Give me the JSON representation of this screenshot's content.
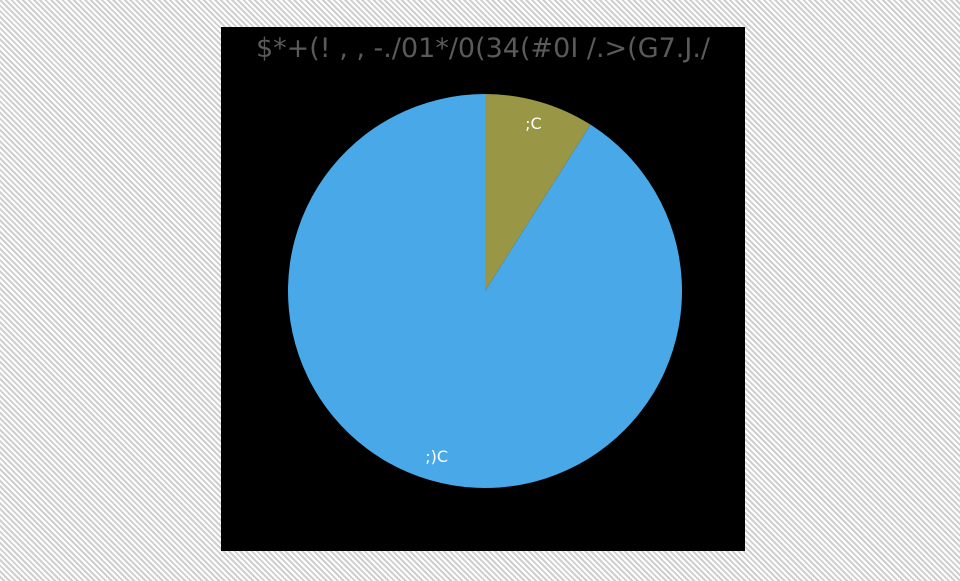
{
  "chart_data": {
    "type": "pie",
    "title": "$*+(! , , -./01*/0(34(#0I /.>(G7.J./",
    "slices": [
      {
        "label": ";C",
        "value": 9,
        "color": "#999646"
      },
      {
        "label": ";)C",
        "value": 91,
        "color": "#49a9e8"
      }
    ],
    "start_angle_deg": 0,
    "direction": "clockwise",
    "legend": "none",
    "background": "#000000"
  }
}
